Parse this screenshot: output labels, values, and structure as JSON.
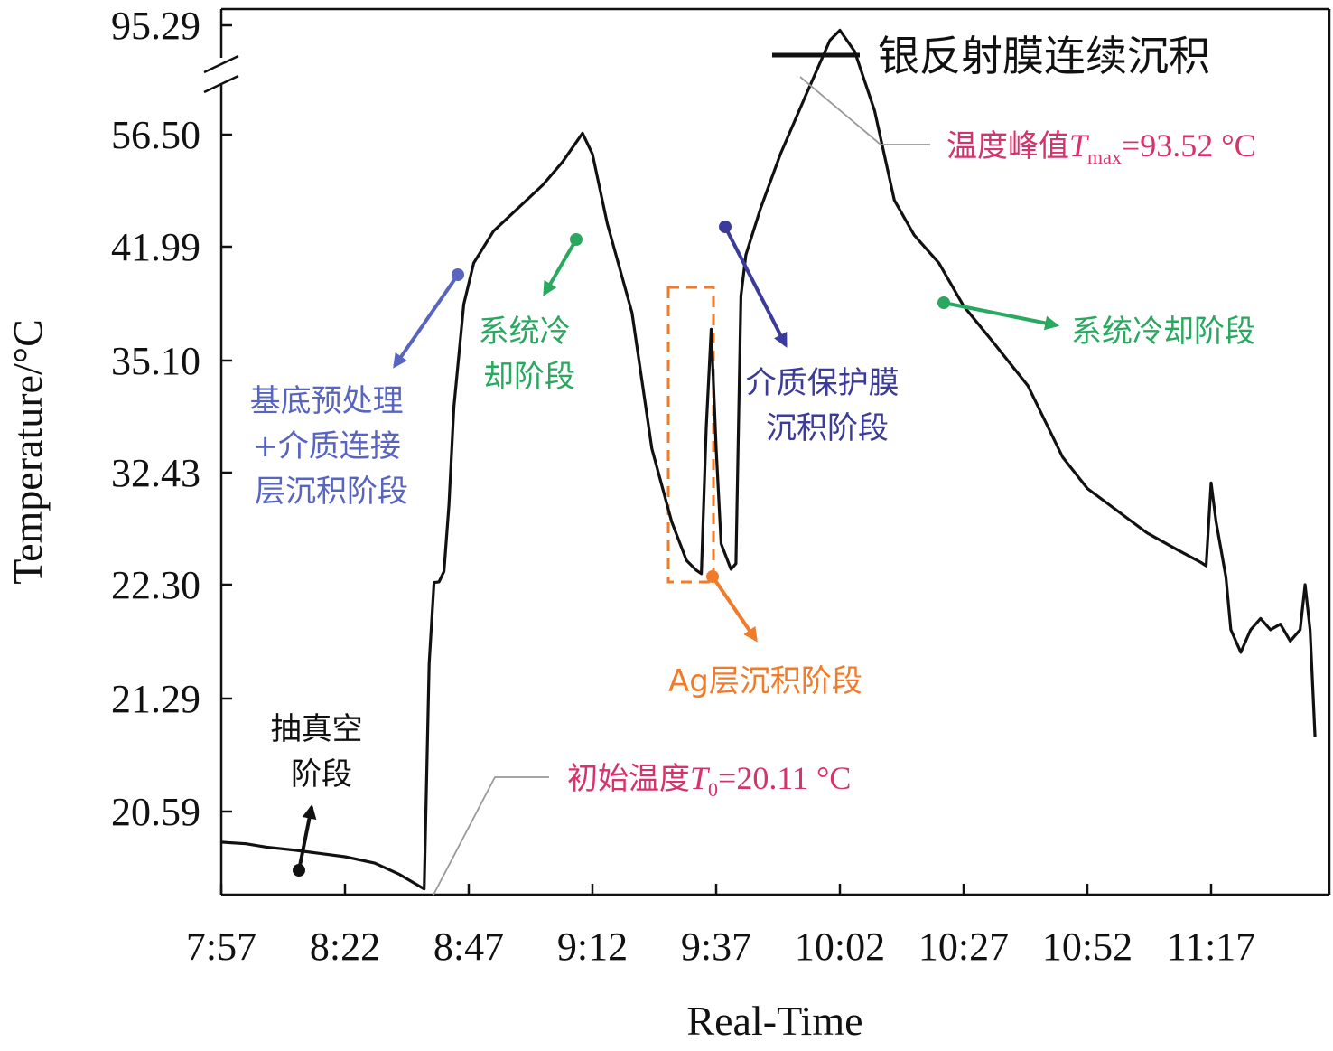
{
  "chart_data": {
    "type": "line",
    "xlabel": "Real-Time",
    "ylabel": "Temperature/°C",
    "x_ticks": [
      "7:57",
      "8:22",
      "8:47",
      "9:12",
      "9:37",
      "10:02",
      "10:27",
      "10:52",
      "11:17"
    ],
    "y_ticks": [
      "20.59",
      "21.29",
      "22.30",
      "32.43",
      "35.10",
      "41.99",
      "56.50",
      "95.29"
    ],
    "y_scale": "nonlinear, segmented (equally spaced labeled ticks, axis break above 56.50)",
    "grid": false,
    "legend": {
      "position": "top-right",
      "label": "银反射膜连续沉积",
      "color": "#111111"
    },
    "series": [
      {
        "name": "银反射膜连续沉积",
        "color": "#111111",
        "points": [
          [
            "7:57",
            20.4
          ],
          [
            "8:02",
            20.39
          ],
          [
            "8:06",
            20.37
          ],
          [
            "8:12",
            20.35
          ],
          [
            "8:17",
            20.33
          ],
          [
            "8:22",
            20.31
          ],
          [
            "8:28",
            20.27
          ],
          [
            "8:33",
            20.2
          ],
          [
            "8:38",
            20.11
          ],
          [
            "8:39",
            21.6
          ],
          [
            "8:40",
            22.5
          ],
          [
            "8:41",
            22.55
          ],
          [
            "8:42",
            23.5
          ],
          [
            "8:43",
            29.5
          ],
          [
            "8:44",
            34.0
          ],
          [
            "8:46",
            38.5
          ],
          [
            "8:48",
            41.0
          ],
          [
            "8:52",
            44.0
          ],
          [
            "8:57",
            47.0
          ],
          [
            "9:02",
            50.0
          ],
          [
            "9:06",
            53.0
          ],
          [
            "9:10",
            57.0
          ],
          [
            "9:12",
            54.0
          ],
          [
            "9:15",
            45.0
          ],
          [
            "9:20",
            38.0
          ],
          [
            "9:24",
            33.0
          ],
          [
            "9:28",
            28.0
          ],
          [
            "9:31",
            24.5
          ],
          [
            "9:33",
            23.6
          ],
          [
            "9:34",
            23.3
          ],
          [
            "9:35",
            33.5
          ],
          [
            "9:36",
            37.0
          ],
          [
            "9:37",
            33.0
          ],
          [
            "9:38",
            26.0
          ],
          [
            "9:40",
            23.7
          ],
          [
            "9:41",
            24.2
          ],
          [
            "9:42",
            39.0
          ],
          [
            "9:43",
            41.5
          ],
          [
            "9:46",
            47.0
          ],
          [
            "9:50",
            54.0
          ],
          [
            "9:55",
            70.0
          ],
          [
            "10:00",
            90.0
          ],
          [
            "10:02",
            93.52
          ],
          [
            "10:05",
            86.0
          ],
          [
            "10:09",
            65.0
          ],
          [
            "10:13",
            48.0
          ],
          [
            "10:17",
            43.5
          ],
          [
            "10:22",
            41.0
          ],
          [
            "10:27",
            38.4
          ],
          [
            "10:33",
            36.2
          ],
          [
            "10:40",
            34.5
          ],
          [
            "10:47",
            32.8
          ],
          [
            "10:52",
            31.0
          ],
          [
            "10:58",
            29.0
          ],
          [
            "11:04",
            27.0
          ],
          [
            "11:10",
            25.5
          ],
          [
            "11:15",
            24.3
          ],
          [
            "11:16",
            24.0
          ],
          [
            "11:17",
            31.5
          ],
          [
            "11:18",
            28.0
          ],
          [
            "11:20",
            23.0
          ],
          [
            "11:21",
            21.9
          ],
          [
            "11:23",
            21.7
          ],
          [
            "11:25",
            21.9
          ],
          [
            "11:27",
            22.0
          ],
          [
            "11:29",
            21.9
          ],
          [
            "11:31",
            21.95
          ],
          [
            "11:33",
            21.8
          ],
          [
            "11:35",
            21.9
          ],
          [
            "11:36",
            22.3
          ],
          [
            "11:37",
            21.9
          ],
          [
            "11:38",
            21.05
          ]
        ]
      }
    ],
    "annotations": [
      {
        "id": "peak",
        "text_prefix": "温度峰值",
        "symbol": "T",
        "subscript": "max",
        "value_text": "=93.52 °C",
        "color": "#d6336c"
      },
      {
        "id": "initial",
        "text_prefix": "初始温度",
        "symbol": "T",
        "subscript": "0",
        "value_text": "=20.11 °C",
        "color": "#d6336c"
      },
      {
        "id": "vacuum",
        "lines": [
          "抽真空",
          "阶段"
        ],
        "color": "#111111"
      },
      {
        "id": "pretreat",
        "lines": [
          "基底预处理",
          "+介质连接",
          "层沉积阶段"
        ],
        "color": "#5865c0"
      },
      {
        "id": "cool1",
        "lines": [
          "系统冷",
          "却阶段"
        ],
        "color": "#2aa860"
      },
      {
        "id": "ag",
        "lines": [
          "Ag层沉积阶段"
        ],
        "color": "#f07b2a"
      },
      {
        "id": "protect",
        "lines": [
          "介质保护膜",
          "沉积阶段"
        ],
        "color": "#3b3b9a"
      },
      {
        "id": "cool2",
        "lines": [
          "系统冷却阶段"
        ],
        "color": "#2aa860"
      }
    ]
  }
}
